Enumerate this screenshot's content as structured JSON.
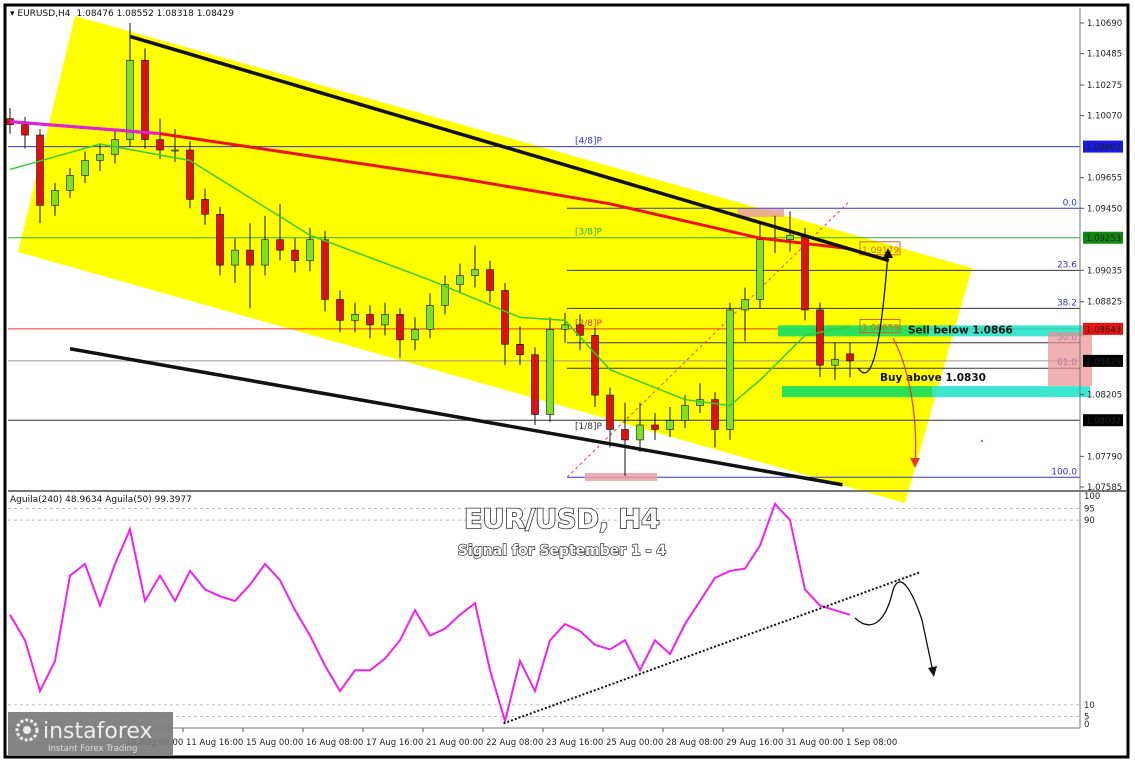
{
  "header": {
    "symbol": "EURUSD,H4",
    "ohlc": "1.08476 1.08552 1.08318 1.08429"
  },
  "overlay": {
    "title": "EUR/USD, H4",
    "subtitle": "Signal for September 1 - 4"
  },
  "logo": {
    "name": "instaforex",
    "tagline": "Instant Forex Trading"
  },
  "colors": {
    "channel_fill": "#ffff00",
    "bull_candle": "#7ee01e",
    "bear_candle": "#dd1111",
    "ma_slow": "#ee1111",
    "ma_slow_start": "#dd22dd",
    "ma_fast": "#33cc33",
    "oscillator": "#ee22ee",
    "sell_zone": "#19e3c8",
    "buy_zone": "#19e3c8",
    "fib": "#3333cc"
  },
  "chart_data": [
    {
      "type": "candlestick",
      "symbol": "EURUSD",
      "timeframe": "H4",
      "ylim": [
        1.07585,
        1.1069
      ],
      "y_ticks": [
        "1.10690",
        "1.10485",
        "1.10275",
        "1.10070",
        "1.09655",
        "1.09450",
        "1.09035",
        "1.08825",
        "1.08205",
        "1.07790",
        "1.07585"
      ],
      "price_labels": [
        {
          "value": "1.09863",
          "color": "#1a1ae6"
        },
        {
          "value": "1.09253",
          "color": "#118811"
        },
        {
          "value": "1.08643",
          "color": "#ee1111"
        },
        {
          "value": "1.08429",
          "color": "#000000"
        },
        {
          "value": "1.08032",
          "color": "#000000"
        }
      ],
      "x_ticks": [
        "10 Aug 08:00",
        "11 Aug 16:00",
        "15 Aug 00:00",
        "16 Aug 08:00",
        "17 Aug 16:00",
        "21 Aug 00:00",
        "22 Aug 08:00",
        "23 Aug 16:00",
        "25 Aug 00:00",
        "28 Aug 08:00",
        "29 Aug 16:00",
        "31 Aug 00:00",
        "1 Sep 08:00"
      ],
      "candles": [
        [
          1.1005,
          1.1012,
          1.0995,
          1.1001
        ],
        [
          1.1001,
          1.1006,
          1.0985,
          1.0994
        ],
        [
          1.0994,
          1.0998,
          1.0935,
          1.0947
        ],
        [
          1.0947,
          1.0962,
          1.094,
          1.0957
        ],
        [
          1.0957,
          1.0972,
          1.0952,
          1.0967
        ],
        [
          1.0967,
          1.0983,
          1.0962,
          1.0977
        ],
        [
          1.0977,
          1.0988,
          1.097,
          1.0981
        ],
        [
          1.0981,
          1.0998,
          1.0975,
          1.0991
        ],
        [
          1.0991,
          1.1069,
          1.0986,
          1.1044
        ],
        [
          1.1044,
          1.1052,
          1.0985,
          1.0991
        ],
        [
          1.0991,
          1.1005,
          1.0978,
          1.0984
        ],
        [
          1.0984,
          1.0998,
          1.0976,
          1.0984
        ],
        [
          1.0984,
          1.099,
          1.0945,
          1.0951
        ],
        [
          1.0951,
          1.0958,
          1.0934,
          1.0941
        ],
        [
          1.0941,
          1.0946,
          1.09,
          1.0907
        ],
        [
          1.0907,
          1.0925,
          1.0895,
          1.0917
        ],
        [
          1.0917,
          1.0935,
          1.0878,
          1.0907
        ],
        [
          1.0907,
          1.094,
          1.09,
          1.0924
        ],
        [
          1.0924,
          1.0948,
          1.091,
          1.0917
        ],
        [
          1.0917,
          1.0925,
          1.0902,
          1.091
        ],
        [
          1.091,
          1.0932,
          1.0903,
          1.0924
        ],
        [
          1.0924,
          1.093,
          1.0876,
          1.0884
        ],
        [
          1.0884,
          1.089,
          1.0862,
          1.087
        ],
        [
          1.087,
          1.0882,
          1.0862,
          1.0874
        ],
        [
          1.0874,
          1.088,
          1.0858,
          1.0867
        ],
        [
          1.0867,
          1.0882,
          1.086,
          1.0874
        ],
        [
          1.0874,
          1.0878,
          1.0845,
          1.0857
        ],
        [
          1.0857,
          1.0872,
          1.085,
          1.0864
        ],
        [
          1.0864,
          1.0888,
          1.0858,
          1.088
        ],
        [
          1.088,
          1.09,
          1.0874,
          1.0894
        ],
        [
          1.0894,
          1.0908,
          1.0888,
          1.09
        ],
        [
          1.09,
          1.092,
          1.0892,
          1.0904
        ],
        [
          1.0904,
          1.091,
          1.0882,
          1.089
        ],
        [
          1.089,
          1.0895,
          1.084,
          1.0854
        ],
        [
          1.0854,
          1.0866,
          1.084,
          1.0847
        ],
        [
          1.0847,
          1.0852,
          1.08,
          1.0807
        ],
        [
          1.0807,
          1.0872,
          1.0802,
          1.0864
        ],
        [
          1.0864,
          1.0875,
          1.0855,
          1.0867
        ],
        [
          1.0867,
          1.0874,
          1.085,
          1.086
        ],
        [
          1.086,
          1.0865,
          1.0812,
          1.082
        ],
        [
          1.082,
          1.0825,
          1.0785,
          1.0797
        ],
        [
          1.0797,
          1.0815,
          1.0766,
          1.079
        ],
        [
          1.079,
          1.0815,
          1.0782,
          1.08
        ],
        [
          1.08,
          1.0808,
          1.079,
          1.0797
        ],
        [
          1.0797,
          1.0812,
          1.0792,
          1.0803
        ],
        [
          1.0803,
          1.082,
          1.0798,
          1.0813
        ],
        [
          1.0813,
          1.0828,
          1.0808,
          1.0817
        ],
        [
          1.0817,
          1.0822,
          1.0785,
          1.0797
        ],
        [
          1.0797,
          1.0882,
          1.079,
          1.0877
        ],
        [
          1.0877,
          1.0892,
          1.0856,
          1.0884
        ],
        [
          1.0884,
          1.0935,
          1.0878,
          1.0924
        ],
        [
          1.0924,
          1.094,
          1.0915,
          1.0924
        ],
        [
          1.0924,
          1.0943,
          1.0916,
          1.0927
        ],
        [
          1.0927,
          1.0932,
          1.087,
          1.0877
        ],
        [
          1.0877,
          1.0882,
          1.0832,
          1.084
        ],
        [
          1.084,
          1.0855,
          1.083,
          1.0844
        ],
        [
          1.08476,
          1.08552,
          1.08318,
          1.08429
        ]
      ],
      "ma_slow": [
        [
          0,
          1.1003
        ],
        [
          10,
          1.0995
        ],
        [
          20,
          1.098
        ],
        [
          30,
          1.0965
        ],
        [
          40,
          1.0948
        ],
        [
          50,
          1.0925
        ],
        [
          56,
          1.09179
        ]
      ],
      "ma_fast": [
        [
          0,
          1.0971
        ],
        [
          6,
          1.0988
        ],
        [
          12,
          1.0977
        ],
        [
          20,
          1.0927
        ],
        [
          28,
          1.0897
        ],
        [
          34,
          1.0872
        ],
        [
          37,
          1.087
        ],
        [
          40,
          1.0837
        ],
        [
          45,
          1.0817
        ],
        [
          48,
          1.0813
        ],
        [
          50,
          1.083
        ],
        [
          53,
          1.086
        ],
        [
          56,
          1.08659
        ]
      ],
      "ma_slow_label": "1.09179",
      "ma_fast_label": "1.08659",
      "channel": {
        "upper": [
          [
            8,
            1.106
          ],
          [
            58.6,
            1.091
          ]
        ],
        "lower": [
          [
            4,
            1.0851
          ],
          [
            55.5,
            1.076
          ]
        ]
      },
      "murrey_levels": [
        {
          "label": "[4/8]P",
          "value": 1.09863,
          "color": "#3333cc"
        },
        {
          "label": "[3/8]P",
          "value": 1.09253,
          "color": "#33aa33"
        },
        {
          "label": "[2/8]P",
          "value": 1.08643,
          "color": "#ee3333"
        },
        {
          "label": "[1/8]P",
          "value": 1.08032,
          "color": "#333333"
        }
      ],
      "fib_levels": [
        {
          "label": "0.0",
          "value": 1.0945
        },
        {
          "label": "23.6",
          "value": 1.09035
        },
        {
          "label": "38.2",
          "value": 1.0878
        },
        {
          "label": "50.0",
          "value": 1.0855
        },
        {
          "label": "61.8",
          "value": 1.0838
        },
        {
          "label": "100.0",
          "value": 1.0765
        }
      ],
      "current_price": 1.08429,
      "zones": {
        "sell": {
          "label": "Sell below 1.0866",
          "value": 1.0866
        },
        "buy": {
          "label": "Buy above 1.0830",
          "value": 1.083
        }
      }
    },
    {
      "type": "line",
      "legend": "Aguila(240) 48.9634  Aguila(50) 99.3977",
      "ylim": [
        0,
        100
      ],
      "y_ticks": [
        "100",
        "95",
        "90",
        "10",
        "5",
        "0"
      ],
      "series": [
        {
          "values": [
            49,
            38,
            16,
            29,
            66,
            71,
            53,
            71,
            86,
            55,
            66,
            55,
            68,
            60,
            57,
            55,
            62,
            71,
            64,
            51,
            40,
            27,
            16,
            25,
            25,
            30,
            38,
            51,
            40,
            43,
            49,
            54,
            25,
            3,
            29,
            16,
            38,
            45,
            42,
            36,
            34,
            38,
            25,
            38,
            32,
            45,
            55,
            65,
            68,
            69,
            79,
            97,
            90,
            60,
            53,
            51,
            49
          ]
        }
      ],
      "trendline": [
        [
          32.9,
          2
        ],
        [
          60.7,
          67.5
        ]
      ]
    }
  ]
}
